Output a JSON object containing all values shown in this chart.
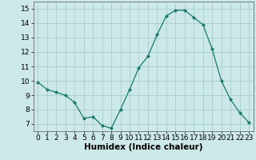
{
  "x": [
    0,
    1,
    2,
    3,
    4,
    5,
    6,
    7,
    8,
    9,
    10,
    11,
    12,
    13,
    14,
    15,
    16,
    17,
    18,
    19,
    20,
    21,
    22,
    23
  ],
  "y": [
    9.9,
    9.4,
    9.2,
    9.0,
    8.5,
    7.4,
    7.5,
    6.9,
    6.7,
    8.0,
    9.4,
    10.9,
    11.7,
    13.2,
    14.5,
    14.9,
    14.9,
    14.4,
    13.9,
    12.2,
    10.0,
    8.7,
    7.8,
    7.1
  ],
  "line_color": "#1a7a6e",
  "marker": "D",
  "marker_size": 2,
  "bg_color": "#cce8e8",
  "grid_color": "#a0c8c8",
  "xlabel": "Humidex (Indice chaleur)",
  "xlim": [
    -0.5,
    23.5
  ],
  "ylim": [
    6.5,
    15.5
  ],
  "yticks": [
    7,
    8,
    9,
    10,
    11,
    12,
    13,
    14,
    15
  ],
  "xticks": [
    0,
    1,
    2,
    3,
    4,
    5,
    6,
    7,
    8,
    9,
    10,
    11,
    12,
    13,
    14,
    15,
    16,
    17,
    18,
    19,
    20,
    21,
    22,
    23
  ],
  "xlabel_fontsize": 7.5,
  "tick_fontsize": 6.5
}
